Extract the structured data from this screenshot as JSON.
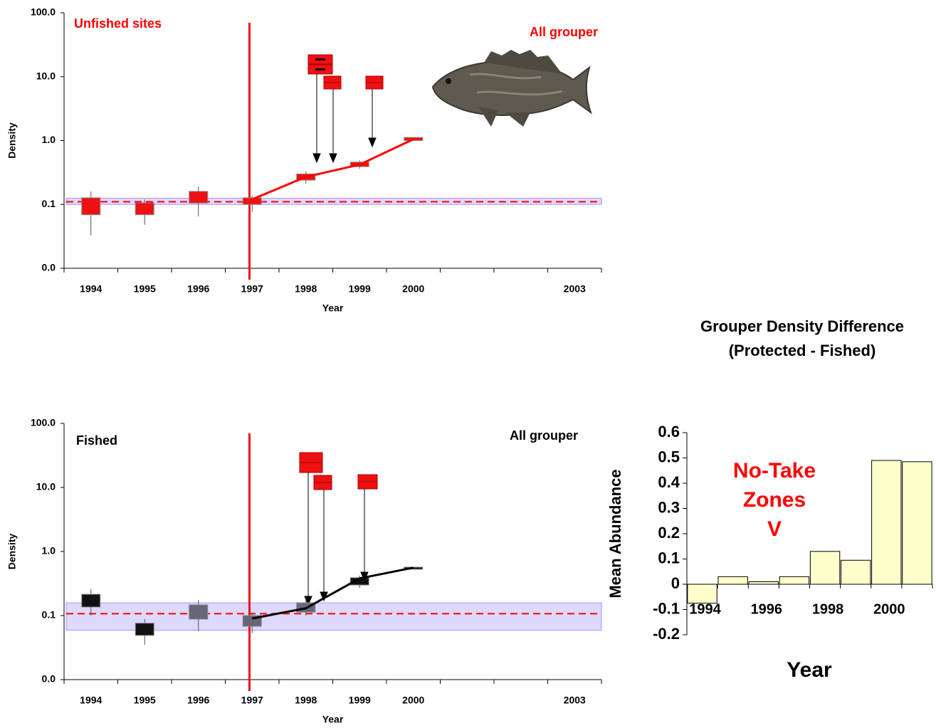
{
  "chart_data": [
    {
      "type": "box",
      "ylabel": "Density",
      "xlabel": "Year",
      "annotations": [
        "Unfished sites",
        "All grouper"
      ],
      "annotation_color": "#ff0000",
      "categories": [
        "1994",
        "1995",
        "1996",
        "1997",
        "1998",
        "1999",
        "2000",
        null,
        null,
        "2003"
      ],
      "yscale": "log",
      "ylim": [
        0.01,
        100
      ],
      "yticks": [
        {
          "value": 100,
          "label": "100.0"
        },
        {
          "value": 10,
          "label": "10.0"
        },
        {
          "value": 1,
          "label": "1.0"
        },
        {
          "value": 0.1,
          "label": "0.1"
        },
        {
          "value": 0.01,
          "label": "0.0"
        }
      ],
      "box_colors": [
        "#ee1111",
        "#ee1111",
        "#ee1111",
        "#ee1111",
        "#ee1111",
        "#ee1111",
        "#ee1111"
      ],
      "boxes": [
        {
          "whisker_low": 0.033,
          "box_low": 0.069,
          "box_high": 0.127,
          "whisker_high": 0.16
        },
        {
          "whisker_low": 0.048,
          "box_low": 0.069,
          "box_high": 0.106,
          "whisker_high": 0.12
        },
        {
          "whisker_low": 0.065,
          "box_low": 0.105,
          "box_high": 0.16,
          "whisker_high": 0.19
        },
        {
          "whisker_low": 0.076,
          "box_low": 0.1,
          "box_high": 0.127,
          "whisker_high": 0.137
        },
        {
          "whisker_low": 0.21,
          "box_low": 0.24,
          "box_high": 0.3,
          "whisker_high": 0.33
        },
        {
          "whisker_low": 0.36,
          "box_low": 0.39,
          "box_high": 0.46,
          "whisker_high": 0.49
        },
        {
          "whisker_low": 1.0,
          "box_low": 1.0,
          "box_high": 1.12,
          "whisker_high": 1.12
        }
      ],
      "line": {
        "color": "#ff0000",
        "values": [
          null,
          null,
          null,
          0.12,
          0.27,
          0.42,
          1.05,
          null,
          null,
          null
        ]
      },
      "reference": {
        "value": 0.11,
        "band": [
          0.1,
          0.125
        ],
        "color": "#ff0000"
      }
    },
    {
      "type": "box",
      "ylabel": "Density",
      "xlabel": "Year",
      "annotations": [
        "Fished",
        "All grouper"
      ],
      "annotation_color": "#000000",
      "categories": [
        "1994",
        "1995",
        "1996",
        "1997",
        "1998",
        "1999",
        "2000",
        null,
        null,
        "2003"
      ],
      "yscale": "log",
      "ylim": [
        0.01,
        100
      ],
      "yticks": [
        {
          "value": 100,
          "label": "100.0"
        },
        {
          "value": 10,
          "label": "10.0"
        },
        {
          "value": 1,
          "label": "1.0"
        },
        {
          "value": 0.1,
          "label": "0.1"
        },
        {
          "value": 0.01,
          "label": "0.0"
        }
      ],
      "box_colors": [
        "#111111",
        "#111111",
        "#666677",
        "#666677",
        "#666677",
        "#111111",
        "#111111"
      ],
      "boxes": [
        {
          "whisker_low": 0.1,
          "box_low": 0.136,
          "box_high": 0.215,
          "whisker_high": 0.26
        },
        {
          "whisker_low": 0.035,
          "box_low": 0.049,
          "box_high": 0.076,
          "whisker_high": 0.088
        },
        {
          "whisker_low": 0.057,
          "box_low": 0.088,
          "box_high": 0.147,
          "whisker_high": 0.175
        },
        {
          "whisker_low": 0.053,
          "box_low": 0.068,
          "box_high": 0.1,
          "whisker_high": 0.113
        },
        {
          "whisker_low": 0.1,
          "box_low": 0.113,
          "box_high": 0.158,
          "whisker_high": 0.19
        },
        {
          "whisker_low": 0.27,
          "box_low": 0.3,
          "box_high": 0.39,
          "whisker_high": 0.42
        },
        {
          "whisker_low": 0.53,
          "box_low": 0.53,
          "box_high": 0.57,
          "whisker_high": 0.57
        }
      ],
      "line": {
        "color": "#000000",
        "values": [
          null,
          null,
          null,
          0.09,
          0.13,
          0.38,
          0.56,
          null,
          null,
          null
        ]
      },
      "reference": {
        "value": 0.107,
        "band": [
          0.059,
          0.158
        ],
        "color": "#ff0000"
      }
    },
    {
      "type": "bar",
      "title": "Grouper Density Difference",
      "subtitle": "(Protected - Fished)",
      "ylabel": "Mean Abundance",
      "xlabel": "Year",
      "annotations": [
        "No-Take",
        "Zones",
        "V"
      ],
      "annotation_color": "#ff0000",
      "categories": [
        "1994",
        null,
        "1996",
        null,
        "1998",
        null,
        "2000",
        null
      ],
      "values": [
        -0.075,
        0.03,
        0.01,
        0.03,
        0.13,
        0.095,
        0.49,
        0.485
      ],
      "color": "#ffffcc",
      "ylim": [
        -0.2,
        0.6
      ],
      "yticks": [
        -0.2,
        -0.1,
        0,
        0.1,
        0.2,
        0.3,
        0.4,
        0.5,
        0.6
      ]
    }
  ]
}
